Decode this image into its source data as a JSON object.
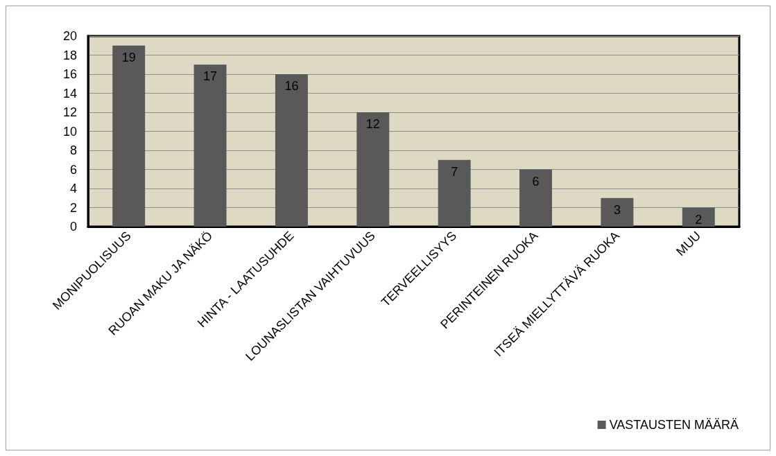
{
  "chart_data": {
    "type": "bar",
    "categories": [
      "MONIPUOLISUUS",
      "RUOAN MAKU JA NÄKÖ",
      "HINTA - LAATUSUHDE",
      "LOUNASLISTAN VAIHTUVUUS",
      "TERVEELLISYYS",
      "PERINTEINEN RUOKA",
      "ITSEÄ MIELLYTTÄVÄ RUOKA",
      "MUU"
    ],
    "series": [
      {
        "name": "VASTAUSTEN MÄÄRÄ",
        "color": "#595959",
        "values": [
          19,
          17,
          16,
          12,
          7,
          6,
          3,
          2
        ]
      }
    ],
    "ylim": [
      0,
      20
    ],
    "yticks": [
      0,
      2,
      4,
      6,
      8,
      10,
      12,
      14,
      16,
      18,
      20
    ],
    "grid": "y",
    "legend": "bottom right",
    "data_labels": true
  }
}
